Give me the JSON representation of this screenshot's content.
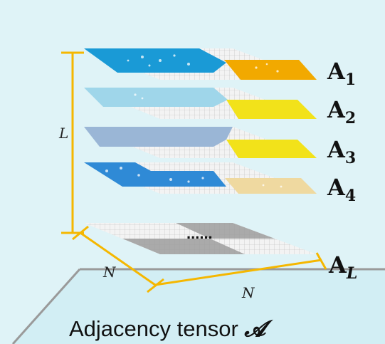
{
  "axis_labels": {
    "layers": "L",
    "rows": "N",
    "cols": "N"
  },
  "ellipsis": "......",
  "caption": {
    "text": "Adjacency tensor ",
    "symbol": "𝓐"
  },
  "layers": [
    {
      "base": "A",
      "sub": "1",
      "color_main": "#1a9ad6",
      "color_corner": "#f2a900"
    },
    {
      "base": "A",
      "sub": "2",
      "color_main": "#9fd6ea",
      "color_corner": "#f2e21a"
    },
    {
      "base": "A",
      "sub": "3",
      "color_main": "#9ab6d6",
      "color_corner": "#f2e21a"
    },
    {
      "base": "A",
      "sub": "4",
      "color_main": "#2f8ad6",
      "color_corner": "#efd9a0"
    },
    {
      "base": "A",
      "sub": "L",
      "color_main": "#9c9c9c",
      "color_corner": "#9c9c9c"
    }
  ],
  "colors": {
    "axis": "#f5b700",
    "background": "#dff3f7",
    "floor": "#d2eef4"
  }
}
